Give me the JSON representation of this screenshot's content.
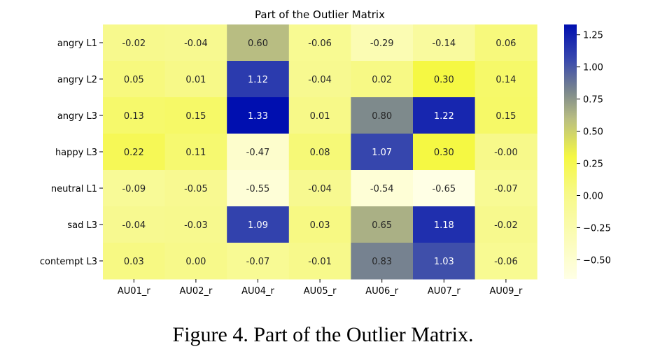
{
  "caption": "Figure 4. Part of the Outlier Matrix.",
  "chart_data": {
    "type": "heatmap",
    "title": "Part of the Outlier Matrix",
    "xlabel": "",
    "ylabel": "",
    "rows": [
      "angry L1",
      "angry L2",
      "angry L3",
      "happy L3",
      "neutral L1",
      "sad L3",
      "contempt L3"
    ],
    "columns": [
      "AU01_r",
      "AU02_r",
      "AU04_r",
      "AU05_r",
      "AU06_r",
      "AU07_r",
      "AU09_r"
    ],
    "values": [
      [
        -0.02,
        -0.04,
        0.6,
        -0.06,
        -0.29,
        -0.14,
        0.06
      ],
      [
        0.05,
        0.01,
        1.12,
        -0.04,
        0.02,
        0.3,
        0.14
      ],
      [
        0.13,
        0.15,
        1.33,
        0.01,
        0.8,
        1.22,
        0.15
      ],
      [
        0.22,
        0.11,
        -0.47,
        0.08,
        1.07,
        0.3,
        -0.0
      ],
      [
        -0.09,
        -0.05,
        -0.55,
        -0.04,
        -0.54,
        -0.65,
        -0.07
      ],
      [
        -0.04,
        -0.03,
        1.09,
        0.03,
        0.65,
        1.18,
        -0.02
      ],
      [
        0.03,
        0.0,
        -0.07,
        -0.01,
        0.83,
        1.03,
        -0.06
      ]
    ],
    "value_labels": [
      [
        "-0.02",
        "-0.04",
        "0.60",
        "-0.06",
        "-0.29",
        "-0.14",
        "0.06"
      ],
      [
        "0.05",
        "0.01",
        "1.12",
        "-0.04",
        "0.02",
        "0.30",
        "0.14"
      ],
      [
        "0.13",
        "0.15",
        "1.33",
        "0.01",
        "0.80",
        "1.22",
        "0.15"
      ],
      [
        "0.22",
        "0.11",
        "-0.47",
        "0.08",
        "1.07",
        "0.30",
        "-0.00"
      ],
      [
        "-0.09",
        "-0.05",
        "-0.55",
        "-0.04",
        "-0.54",
        "-0.65",
        "-0.07"
      ],
      [
        "-0.04",
        "-0.03",
        "1.09",
        "0.03",
        "0.65",
        "1.18",
        "-0.02"
      ],
      [
        "0.03",
        "0.00",
        "-0.07",
        "-0.01",
        "0.83",
        "1.03",
        "-0.06"
      ]
    ],
    "colorbar": {
      "vmin": -0.65,
      "vmax": 1.33,
      "ticks": [
        1.25,
        1.0,
        0.75,
        0.5,
        0.25,
        0.0,
        -0.25,
        -0.5
      ],
      "tick_labels": [
        "1.25",
        "1.00",
        "0.75",
        "0.50",
        "0.25",
        "0.00",
        "−0.25",
        "−0.50"
      ],
      "colormap": [
        {
          "v": -0.65,
          "color": "#ffffe5"
        },
        {
          "v": 0.0,
          "color": "#f7f98a"
        },
        {
          "v": 0.3,
          "color": "#f5f843"
        },
        {
          "v": 0.6,
          "color": "#b8bd82"
        },
        {
          "v": 0.8,
          "color": "#7e8a8c"
        },
        {
          "v": 1.05,
          "color": "#3a4aad"
        },
        {
          "v": 1.33,
          "color": "#000fb0"
        }
      ]
    }
  }
}
